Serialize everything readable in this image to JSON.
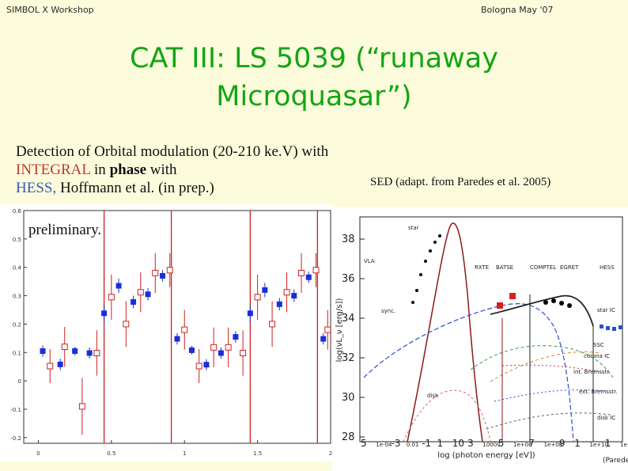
{
  "header": {
    "left": "SIMBOL X Workshop",
    "right": "Bologna May '07"
  },
  "title": {
    "line1": "CAT III: LS 5039 (“runaway",
    "line2": "Microquasar”)"
  },
  "left_text": {
    "part1": "Detection of Orbital modulation (20-210 ke.V) with ",
    "integral": "INTEGRAL",
    "part2": "  in ",
    "bold": "phase",
    "part3": " with ",
    "hess": "HESS,",
    "part4": " Hoffmann et al. (in prep.)"
  },
  "preliminary_label": "preliminary.",
  "sed_caption": "SED (adapt. from Paredes et al. 2005)",
  "colors": {
    "title": "#14a514",
    "integral": "#c0392b",
    "hess": "#3b5bb5"
  },
  "chart_data": [
    {
      "type": "scatter",
      "title": "",
      "xlabel": "",
      "ylabel": "",
      "xlim": [
        -0.1,
        2.0
      ],
      "ylim": [
        -0.22,
        0.6
      ],
      "x_ticks": [
        "0",
        "0.5",
        "1",
        "1.5",
        "2"
      ],
      "y_ticks": [
        "-0.2",
        "-0.1",
        "0",
        "0.1",
        "0.2",
        "0.3",
        "0.4",
        "0.5",
        "0.6"
      ],
      "vlines": [
        0.45,
        0.91,
        1.45,
        1.91
      ],
      "series": [
        {
          "marker": "filled-square",
          "color": "#1a2fd8",
          "points": [
            [
              0.03,
              0.105,
              0.02
            ],
            [
              0.15,
              0.058,
              0.02
            ],
            [
              0.25,
              0.105,
              0.015
            ],
            [
              0.35,
              0.098,
              0.02
            ],
            [
              0.45,
              0.238,
              0.03
            ],
            [
              0.55,
              0.335,
              0.025
            ],
            [
              0.65,
              0.278,
              0.022
            ],
            [
              0.75,
              0.305,
              0.022
            ],
            [
              0.85,
              0.37,
              0.02
            ],
            [
              0.95,
              0.148,
              0.02
            ],
            [
              1.05,
              0.108,
              0.015
            ],
            [
              1.15,
              0.057,
              0.02
            ],
            [
              1.25,
              0.098,
              0.02
            ],
            [
              1.35,
              0.155,
              0.02
            ],
            [
              1.45,
              0.238,
              0.03
            ],
            [
              1.55,
              0.32,
              0.025
            ],
            [
              1.65,
              0.27,
              0.022
            ],
            [
              1.75,
              0.3,
              0.022
            ],
            [
              1.85,
              0.365,
              0.02
            ],
            [
              1.95,
              0.148,
              0.02
            ]
          ]
        },
        {
          "marker": "open-square",
          "color": "#d02020",
          "points": [
            [
              0.08,
              0.052,
              0.06
            ],
            [
              0.18,
              0.12,
              0.07
            ],
            [
              0.3,
              -0.09,
              0.1
            ],
            [
              0.4,
              0.098,
              0.08
            ],
            [
              0.5,
              0.295,
              0.08
            ],
            [
              0.6,
              0.2,
              0.08
            ],
            [
              0.7,
              0.312,
              0.07
            ],
            [
              0.8,
              0.38,
              0.07
            ],
            [
              0.9,
              0.39,
              0.06
            ],
            [
              1.0,
              0.18,
              0.07
            ],
            [
              1.1,
              0.052,
              0.06
            ],
            [
              1.2,
              0.118,
              0.07
            ],
            [
              1.3,
              0.118,
              0.07
            ],
            [
              1.4,
              0.098,
              0.08
            ],
            [
              1.5,
              0.295,
              0.08
            ],
            [
              1.6,
              0.2,
              0.08
            ],
            [
              1.7,
              0.312,
              0.07
            ],
            [
              1.8,
              0.38,
              0.07
            ],
            [
              1.9,
              0.39,
              0.06
            ],
            [
              1.98,
              0.18,
              0.07
            ]
          ]
        }
      ]
    },
    {
      "type": "line",
      "title": "",
      "xlabel": "log (photon energy [eV])",
      "ylabel": "log(νL_ν [erg/s])",
      "x_ticks": [
        "5",
        "1e-04",
        "-3",
        "0.01",
        "-1",
        "1",
        "10",
        "3",
        "10000",
        "5",
        "1e+06",
        "7",
        "1e+08",
        "9",
        "1",
        "1e+10",
        "1",
        "1e+13"
      ],
      "y_ticks": [
        "38",
        "36",
        "34",
        "32",
        "30",
        "28"
      ],
      "annotations": [
        "star",
        "VLA",
        "RXTE",
        "BATSE",
        "COMPTEL",
        "EGRET",
        "HESS",
        "sync.",
        "star IC",
        "SSC",
        "corona IC",
        "int. Bremsstr.",
        "ext. Bremsstr.",
        "disk",
        "disk IC",
        "(Paredes"
      ],
      "series": [
        {
          "name": "star",
          "color": "#8b1a1a"
        },
        {
          "name": "sync.",
          "color": "#2a4fd0"
        },
        {
          "name": "star IC",
          "color": "#222222"
        },
        {
          "name": "SSC",
          "color": "#3a9a3a"
        },
        {
          "name": "corona IC",
          "color": "#d28a2a"
        },
        {
          "name": "int. Bremsstr.",
          "color": "#c04040"
        },
        {
          "name": "ext. Bremsstr.",
          "color": "#2a4fd0"
        },
        {
          "name": "disk",
          "color": "#d06060"
        },
        {
          "name": "disk IC",
          "color": "#606060"
        }
      ]
    }
  ]
}
